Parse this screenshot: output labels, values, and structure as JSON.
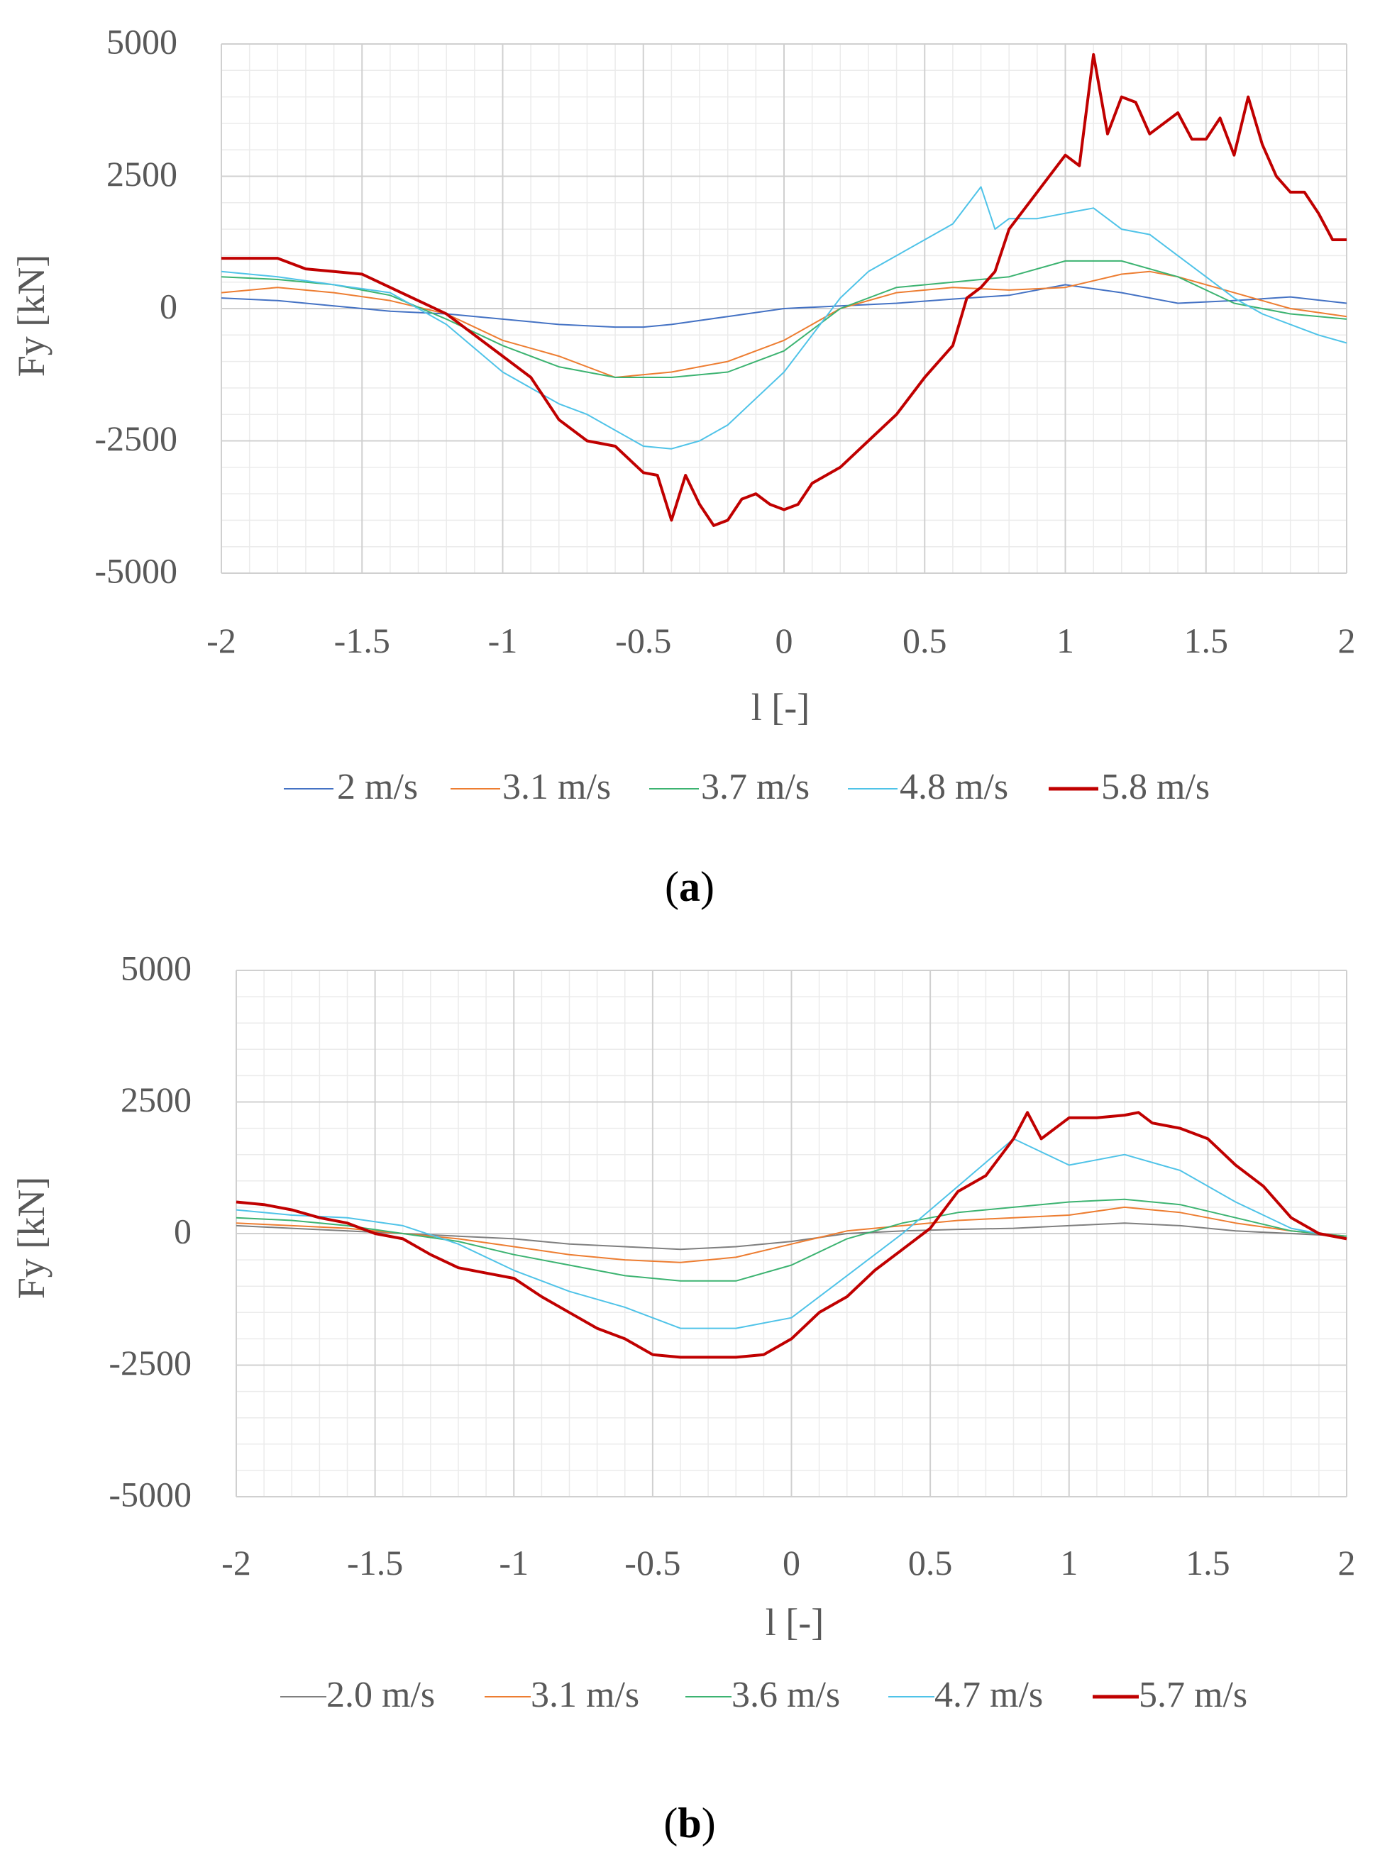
{
  "chart_data": [
    {
      "type": "line",
      "panel_label": {
        "open": "(",
        "letter": "a",
        "close": ")"
      },
      "xlabel": "l [-]",
      "ylabel": "Fy [kN]",
      "xlim": [
        -2,
        2
      ],
      "ylim": [
        -5000,
        5000
      ],
      "x_ticks": [
        "-2",
        "-1.5",
        "-1",
        "-0.5",
        "0",
        "0.5",
        "1",
        "1.5",
        "2"
      ],
      "y_ticks": [
        "5000",
        "2500",
        "0",
        "-2500",
        "-5000"
      ],
      "grid": true,
      "legend_position": "bottom",
      "series": [
        {
          "name": "2 m/s",
          "color": "#4472C4",
          "x": [
            -2,
            -1.8,
            -1.6,
            -1.4,
            -1.2,
            -1,
            -0.8,
            -0.6,
            -0.5,
            -0.4,
            -0.2,
            0,
            0.2,
            0.4,
            0.6,
            0.8,
            1,
            1.2,
            1.4,
            1.6,
            1.8,
            2
          ],
          "y": [
            200,
            150,
            50,
            -50,
            -100,
            -200,
            -300,
            -350,
            -350,
            -300,
            -150,
            0,
            50,
            100,
            180,
            250,
            450,
            300,
            100,
            150,
            220,
            100
          ]
        },
        {
          "name": "3.1 m/s",
          "color": "#ED7D31",
          "x": [
            -2,
            -1.8,
            -1.6,
            -1.4,
            -1.2,
            -1,
            -0.8,
            -0.6,
            -0.4,
            -0.2,
            0,
            0.2,
            0.4,
            0.6,
            0.8,
            1,
            1.2,
            1.3,
            1.4,
            1.6,
            1.8,
            2
          ],
          "y": [
            300,
            400,
            300,
            150,
            -100,
            -600,
            -900,
            -1300,
            -1200,
            -1000,
            -600,
            0,
            300,
            400,
            350,
            400,
            650,
            700,
            600,
            300,
            0,
            -150
          ]
        },
        {
          "name": "3.7 m/s",
          "color": "#3CB371",
          "x": [
            -2,
            -1.8,
            -1.6,
            -1.4,
            -1.2,
            -1,
            -0.8,
            -0.6,
            -0.4,
            -0.2,
            0,
            0.2,
            0.4,
            0.6,
            0.8,
            1,
            1.2,
            1.4,
            1.6,
            1.8,
            2
          ],
          "y": [
            600,
            550,
            450,
            250,
            -200,
            -700,
            -1100,
            -1300,
            -1300,
            -1200,
            -800,
            0,
            400,
            500,
            600,
            900,
            900,
            600,
            100,
            -100,
            -200
          ]
        },
        {
          "name": "4.8 m/s",
          "color": "#4FC3E8",
          "x": [
            -2,
            -1.8,
            -1.6,
            -1.4,
            -1.2,
            -1,
            -0.8,
            -0.7,
            -0.6,
            -0.5,
            -0.4,
            -0.3,
            -0.2,
            -0.1,
            0,
            0.1,
            0.2,
            0.3,
            0.4,
            0.5,
            0.6,
            0.7,
            0.75,
            0.8,
            0.9,
            1,
            1.1,
            1.2,
            1.3,
            1.4,
            1.5,
            1.6,
            1.7,
            1.8,
            1.9,
            2
          ],
          "y": [
            700,
            600,
            450,
            300,
            -300,
            -1200,
            -1800,
            -2000,
            -2300,
            -2600,
            -2650,
            -2500,
            -2200,
            -1700,
            -1200,
            -500,
            200,
            700,
            1000,
            1300,
            1600,
            2300,
            1500,
            1700,
            1700,
            1800,
            1900,
            1500,
            1400,
            1000,
            600,
            200,
            -100,
            -300,
            -500,
            -650
          ]
        },
        {
          "name": "5.8 m/s",
          "color": "#C00000",
          "x": [
            -2,
            -1.8,
            -1.7,
            -1.6,
            -1.5,
            -1.4,
            -1.3,
            -1.2,
            -1.1,
            -1,
            -0.9,
            -0.8,
            -0.7,
            -0.6,
            -0.5,
            -0.45,
            -0.4,
            -0.35,
            -0.3,
            -0.25,
            -0.2,
            -0.15,
            -0.1,
            -0.05,
            0,
            0.05,
            0.1,
            0.2,
            0.3,
            0.4,
            0.5,
            0.55,
            0.6,
            0.65,
            0.7,
            0.75,
            0.8,
            0.9,
            1,
            1.05,
            1.1,
            1.15,
            1.2,
            1.25,
            1.3,
            1.35,
            1.4,
            1.45,
            1.5,
            1.55,
            1.6,
            1.65,
            1.7,
            1.75,
            1.8,
            1.85,
            1.9,
            1.95,
            2
          ],
          "y": [
            950,
            950,
            750,
            700,
            650,
            400,
            150,
            -100,
            -500,
            -900,
            -1300,
            -2100,
            -2500,
            -2600,
            -3100,
            -3150,
            -4000,
            -3150,
            -3700,
            -4100,
            -4000,
            -3600,
            -3500,
            -3700,
            -3800,
            -3700,
            -3300,
            -3000,
            -2500,
            -2000,
            -1300,
            -1000,
            -700,
            200,
            400,
            700,
            1500,
            2200,
            2900,
            2700,
            4800,
            3300,
            4000,
            3900,
            3300,
            3500,
            3700,
            3200,
            3200,
            3600,
            2900,
            4000,
            3100,
            2500,
            2200,
            2200,
            1800,
            1300,
            1300
          ]
        }
      ]
    },
    {
      "type": "line",
      "panel_label": {
        "open": "(",
        "letter": "b",
        "close": ")"
      },
      "xlabel": "l [-]",
      "ylabel": "Fy [kN]",
      "xlim": [
        -2,
        2
      ],
      "ylim": [
        -5000,
        5000
      ],
      "x_ticks": [
        "-2",
        "-1.5",
        "-1",
        "-0.5",
        "0",
        "0.5",
        "1",
        "1.5",
        "2"
      ],
      "y_ticks": [
        "5000",
        "2500",
        "0",
        "-2500",
        "-5000"
      ],
      "grid": true,
      "legend_position": "bottom",
      "series": [
        {
          "name": "2.0 m/s",
          "color": "#7F7F7F",
          "x": [
            -2,
            -1.8,
            -1.6,
            -1.4,
            -1.2,
            -1,
            -0.8,
            -0.6,
            -0.4,
            -0.2,
            0,
            0.2,
            0.4,
            0.6,
            0.8,
            1,
            1.2,
            1.4,
            1.6,
            1.8,
            2
          ],
          "y": [
            150,
            100,
            50,
            0,
            -50,
            -100,
            -200,
            -250,
            -300,
            -250,
            -150,
            0,
            50,
            80,
            100,
            150,
            200,
            150,
            50,
            0,
            -50
          ]
        },
        {
          "name": "3.1 m/s",
          "color": "#ED7D31",
          "x": [
            -2,
            -1.8,
            -1.6,
            -1.4,
            -1.2,
            -1,
            -0.8,
            -0.6,
            -0.4,
            -0.2,
            0,
            0.2,
            0.4,
            0.6,
            0.8,
            1,
            1.2,
            1.4,
            1.6,
            1.8,
            2
          ],
          "y": [
            200,
            150,
            100,
            0,
            -100,
            -250,
            -400,
            -500,
            -550,
            -450,
            -200,
            50,
            150,
            250,
            300,
            350,
            500,
            400,
            200,
            50,
            -50
          ]
        },
        {
          "name": "3.6 m/s",
          "color": "#3CB371",
          "x": [
            -2,
            -1.8,
            -1.6,
            -1.4,
            -1.2,
            -1,
            -0.8,
            -0.6,
            -0.4,
            -0.2,
            0,
            0.2,
            0.4,
            0.6,
            0.8,
            1,
            1.2,
            1.4,
            1.6,
            1.8,
            2
          ],
          "y": [
            300,
            250,
            150,
            0,
            -150,
            -400,
            -600,
            -800,
            -900,
            -900,
            -600,
            -100,
            200,
            400,
            500,
            600,
            650,
            550,
            300,
            50,
            -50
          ]
        },
        {
          "name": "4.7 m/s",
          "color": "#4FC3E8",
          "x": [
            -2,
            -1.8,
            -1.6,
            -1.4,
            -1.2,
            -1,
            -0.8,
            -0.6,
            -0.4,
            -0.2,
            0,
            0.2,
            0.4,
            0.6,
            0.8,
            1,
            1.2,
            1.4,
            1.6,
            1.8,
            2
          ],
          "y": [
            450,
            350,
            300,
            150,
            -200,
            -700,
            -1100,
            -1400,
            -1800,
            -1800,
            -1600,
            -800,
            0,
            900,
            1800,
            1300,
            1500,
            1200,
            600,
            100,
            -100
          ]
        },
        {
          "name": "5.7 m/s",
          "color": "#C00000",
          "x": [
            -2,
            -1.9,
            -1.8,
            -1.7,
            -1.6,
            -1.5,
            -1.4,
            -1.3,
            -1.2,
            -1.1,
            -1,
            -0.9,
            -0.8,
            -0.7,
            -0.6,
            -0.5,
            -0.4,
            -0.3,
            -0.2,
            -0.1,
            0,
            0.1,
            0.2,
            0.3,
            0.4,
            0.5,
            0.6,
            0.7,
            0.8,
            0.85,
            0.9,
            1,
            1.1,
            1.2,
            1.25,
            1.3,
            1.4,
            1.5,
            1.6,
            1.7,
            1.8,
            1.9,
            2
          ],
          "y": [
            600,
            550,
            450,
            300,
            200,
            0,
            -100,
            -400,
            -650,
            -750,
            -850,
            -1200,
            -1500,
            -1800,
            -2000,
            -2300,
            -2350,
            -2350,
            -2350,
            -2300,
            -2000,
            -1500,
            -1200,
            -700,
            -300,
            100,
            800,
            1100,
            1800,
            2300,
            1800,
            2200,
            2200,
            2250,
            2300,
            2100,
            2000,
            1800,
            1300,
            900,
            300,
            0,
            -100
          ]
        }
      ]
    }
  ]
}
